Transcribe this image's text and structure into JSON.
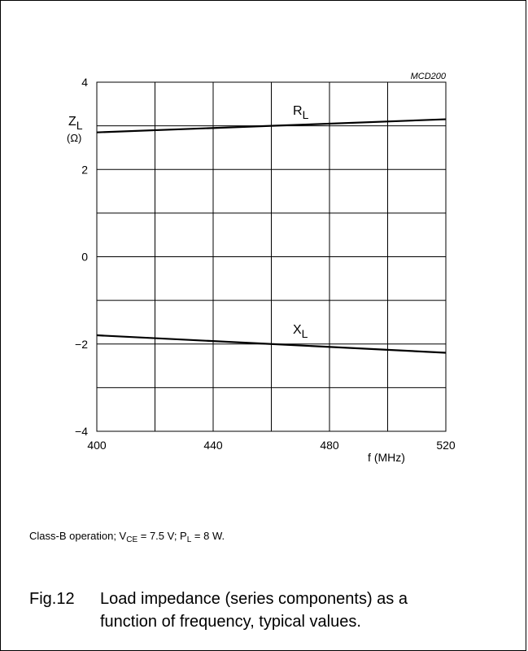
{
  "figure_code": "MCD200",
  "condition_note": {
    "prefix": "Class-B operation; V",
    "vce_sub": "CE",
    "vce_value": " = 7.5 V; P",
    "pl_sub": "L",
    "pl_value": " = 8 W."
  },
  "caption": {
    "number": "Fig.12",
    "line1": "Load impedance (series components) as a",
    "line2": "function of frequency, typical values."
  },
  "chart_data": {
    "type": "line",
    "ylabel": {
      "main": "Z",
      "sub": "L",
      "unit": "(Ω)"
    },
    "xlabel": "f (MHz)",
    "xlim": [
      400,
      520
    ],
    "ylim": [
      -4,
      4
    ],
    "x_ticks": [
      400,
      440,
      480,
      520
    ],
    "y_ticks": [
      {
        "value": 4,
        "label": "4"
      },
      {
        "value": 2,
        "label": "2"
      },
      {
        "value": 0,
        "label": "0"
      },
      {
        "value": -2,
        "label": "−2"
      },
      {
        "value": -4,
        "label": "−4"
      }
    ],
    "grid": true,
    "x_grid_step": 20,
    "y_grid_step": 1,
    "series": [
      {
        "name": "R",
        "name_sub": "L",
        "x": [
          400,
          460,
          520
        ],
        "y": [
          2.85,
          3.0,
          3.15
        ]
      },
      {
        "name": "X",
        "name_sub": "L",
        "x": [
          400,
          460,
          520
        ],
        "y": [
          -1.8,
          -2.0,
          -2.2
        ]
      }
    ]
  }
}
